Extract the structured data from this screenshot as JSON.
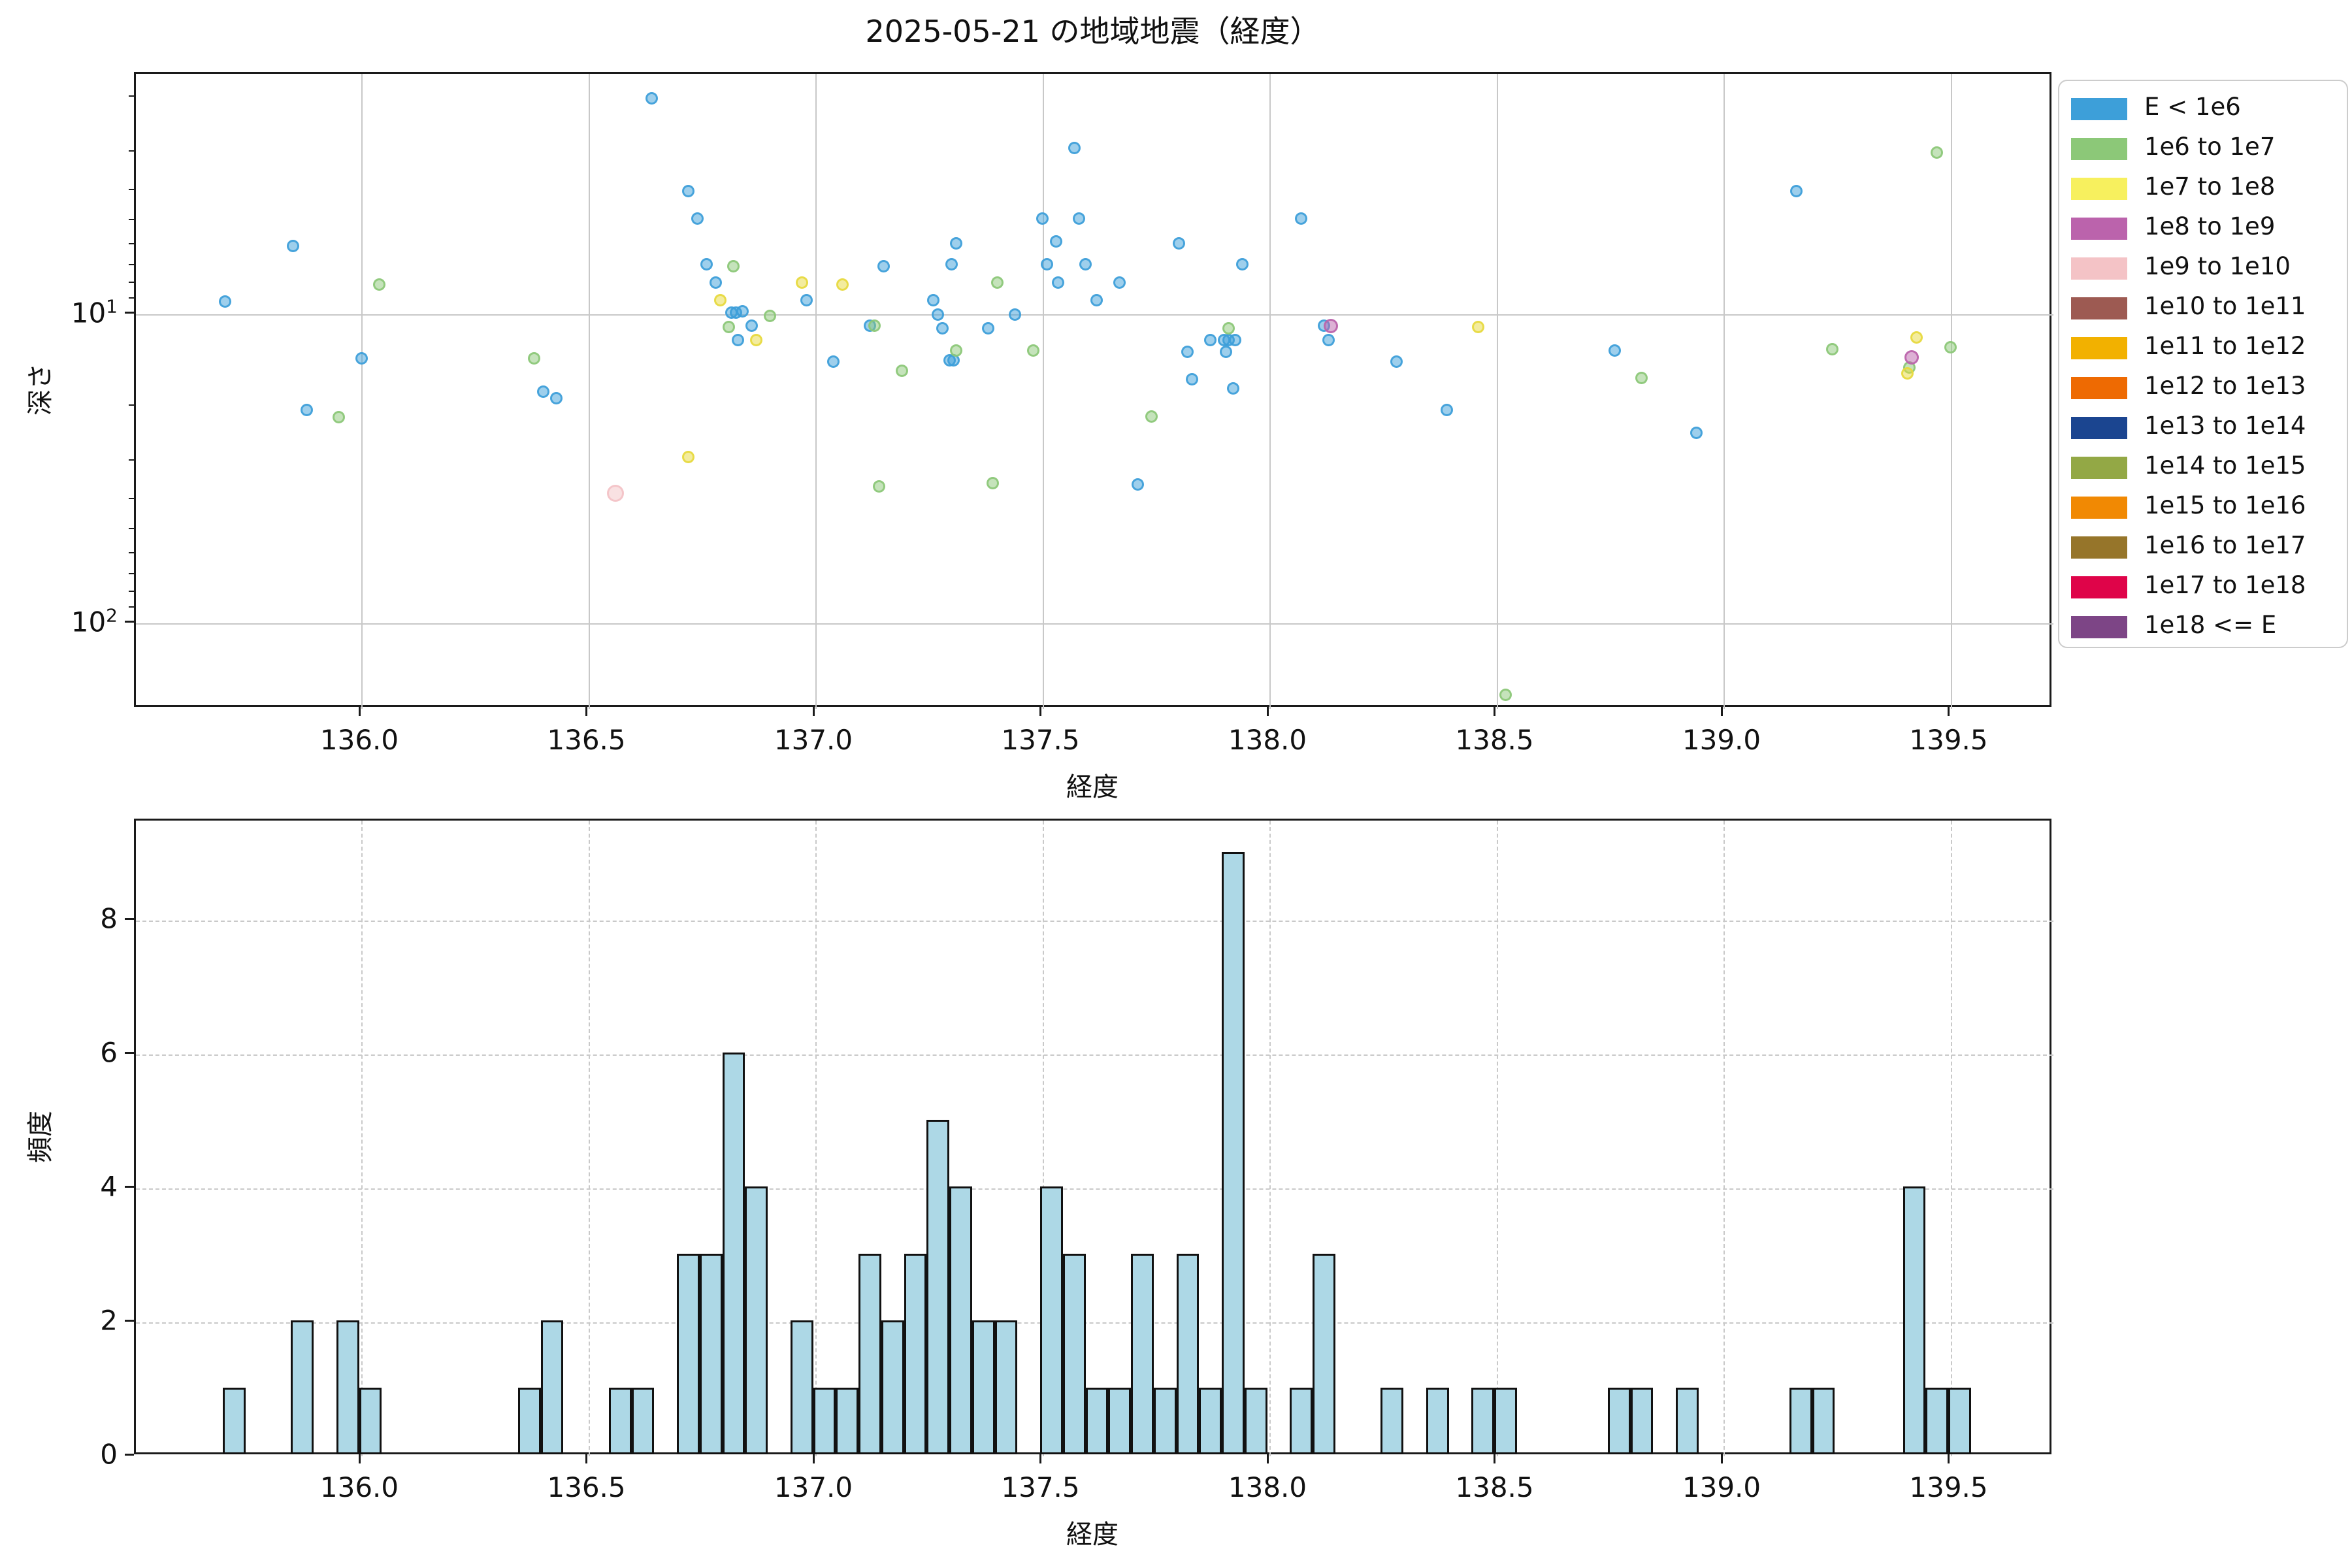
{
  "title": "2025-05-21 の地域地震（経度）",
  "legend": {
    "items": [
      {
        "label": "E < 1e6",
        "color": "#3d9fd9"
      },
      {
        "label": "1e6 to 1e7",
        "color": "#8cc878"
      },
      {
        "label": "1e7 to 1e8",
        "color": "#f7f05e"
      },
      {
        "label": "1e8 to 1e9",
        "color": "#bb63ac"
      },
      {
        "label": "1e9 to 1e10",
        "color": "#f4c3c6"
      },
      {
        "label": "1e10 to 1e11",
        "color": "#9d5a52"
      },
      {
        "label": "1e11 to 1e12",
        "color": "#f2b100"
      },
      {
        "label": "1e12 to 1e13",
        "color": "#ee6a02"
      },
      {
        "label": "1e13 to 1e14",
        "color": "#1b4590"
      },
      {
        "label": "1e14 to 1e15",
        "color": "#93a845"
      },
      {
        "label": "1e15 to 1e16",
        "color": "#f18903"
      },
      {
        "label": "1e16 to 1e17",
        "color": "#96752a"
      },
      {
        "label": "1e17 to 1e18",
        "color": "#df0449"
      },
      {
        "label": "1e18 <= E",
        "color": "#7d4586"
      }
    ]
  },
  "chart_data": [
    {
      "type": "scatter",
      "title": "2025-05-21 の地域地震（経度）",
      "xlabel": "経度",
      "ylabel": "深さ",
      "x_range": [
        135.5,
        139.73
      ],
      "y_scale": "log inverted (depth increases downward)",
      "y_range": [
        1.67,
        189
      ],
      "x_ticks": [
        {
          "v": 136.0,
          "label": "136.0"
        },
        {
          "v": 136.5,
          "label": "136.5"
        },
        {
          "v": 137.0,
          "label": "137.0"
        },
        {
          "v": 137.5,
          "label": "137.5"
        },
        {
          "v": 138.0,
          "label": "138.0"
        },
        {
          "v": 138.5,
          "label": "138.5"
        },
        {
          "v": 139.0,
          "label": "139.0"
        },
        {
          "v": 139.5,
          "label": "139.5"
        }
      ],
      "y_major_ticks": [
        {
          "v": 10,
          "base": "10",
          "exp": "1"
        },
        {
          "v": 100,
          "base": "10",
          "exp": "2"
        }
      ],
      "y_minor_ticks": [
        2,
        3,
        4,
        5,
        6,
        7,
        8,
        9,
        20,
        30,
        40,
        50,
        60,
        70,
        80,
        90
      ],
      "grid": "solid, major only",
      "legend_position": "outside upper right",
      "series": [
        {
          "name": "E < 1e6",
          "color": "#3d9fd9",
          "marker_r": 9.5,
          "points": [
            [
              135.7,
              9.1
            ],
            [
              135.85,
              6.0
            ],
            [
              135.88,
              20.4
            ],
            [
              136.0,
              13.9
            ],
            [
              136.4,
              17.8
            ],
            [
              136.43,
              18.7
            ],
            [
              136.64,
              2.0
            ],
            [
              136.72,
              4.0
            ],
            [
              136.74,
              4.9
            ],
            [
              136.76,
              6.9
            ],
            [
              136.78,
              7.9
            ],
            [
              136.815,
              9.9
            ],
            [
              136.825,
              9.9
            ],
            [
              136.84,
              9.8
            ],
            [
              136.83,
              12.1
            ],
            [
              136.86,
              10.9
            ],
            [
              136.98,
              9.0
            ],
            [
              137.04,
              14.2
            ],
            [
              137.12,
              10.9
            ],
            [
              137.15,
              7.0
            ],
            [
              137.26,
              9.0
            ],
            [
              137.27,
              10.0
            ],
            [
              137.28,
              11.1
            ],
            [
              137.295,
              14.1
            ],
            [
              137.305,
              14.1
            ],
            [
              137.31,
              5.9
            ],
            [
              137.3,
              6.9
            ],
            [
              137.38,
              11.1
            ],
            [
              137.44,
              10.0
            ],
            [
              137.5,
              4.9
            ],
            [
              137.51,
              6.9
            ],
            [
              137.53,
              5.8
            ],
            [
              137.535,
              7.9
            ],
            [
              137.57,
              2.9
            ],
            [
              137.58,
              4.9
            ],
            [
              137.595,
              6.9
            ],
            [
              137.62,
              9.0
            ],
            [
              137.67,
              7.9
            ],
            [
              137.71,
              35.6
            ],
            [
              137.8,
              5.9
            ],
            [
              137.82,
              13.2
            ],
            [
              137.83,
              16.2
            ],
            [
              137.87,
              12.1
            ],
            [
              137.9,
              12.1
            ],
            [
              137.91,
              12.1
            ],
            [
              137.925,
              12.1
            ],
            [
              137.905,
              13.2
            ],
            [
              137.92,
              17.4
            ],
            [
              137.94,
              6.9
            ],
            [
              138.07,
              4.9
            ],
            [
              138.12,
              10.9
            ],
            [
              138.13,
              12.1
            ],
            [
              138.28,
              14.2
            ],
            [
              138.39,
              20.4
            ],
            [
              138.76,
              13.1
            ],
            [
              138.94,
              24.2
            ],
            [
              139.16,
              4.0
            ]
          ]
        },
        {
          "name": "1e6 to 1e7",
          "color": "#8cc878",
          "marker_r": 9.5,
          "points": [
            [
              135.95,
              21.5
            ],
            [
              136.04,
              8.0
            ],
            [
              136.38,
              13.9
            ],
            [
              136.81,
              11.0
            ],
            [
              136.82,
              7.0
            ],
            [
              136.9,
              10.1
            ],
            [
              137.13,
              10.9
            ],
            [
              137.14,
              36.1
            ],
            [
              137.19,
              15.2
            ],
            [
              137.31,
              13.1
            ],
            [
              137.39,
              35.2
            ],
            [
              137.4,
              7.9
            ],
            [
              137.48,
              13.1
            ],
            [
              137.74,
              21.4
            ],
            [
              137.91,
              11.1
            ],
            [
              138.52,
              170.0
            ],
            [
              138.82,
              16.1
            ],
            [
              139.24,
              13.0
            ],
            [
              139.41,
              14.9
            ],
            [
              139.47,
              3.0
            ],
            [
              139.5,
              12.8
            ]
          ]
        },
        {
          "name": "1e7 to 1e8",
          "color": "#e8d93e",
          "marker_r": 9.5,
          "points": [
            [
              136.72,
              29.0
            ],
            [
              136.79,
              9.0
            ],
            [
              136.87,
              12.1
            ],
            [
              136.97,
              7.9
            ],
            [
              137.06,
              8.0
            ],
            [
              138.46,
              11.0
            ],
            [
              139.405,
              15.5
            ],
            [
              139.425,
              11.9
            ]
          ]
        },
        {
          "name": "1e8 to 1e9",
          "color": "#bb63ac",
          "marker_r": 11,
          "points": [
            [
              138.135,
              10.9
            ],
            [
              139.415,
              13.8
            ]
          ]
        },
        {
          "name": "1e9 to 1e10",
          "color": "#f4c3c6",
          "marker_r": 13,
          "points": [
            [
              136.56,
              38.0
            ]
          ]
        }
      ]
    },
    {
      "type": "bar",
      "xlabel": "経度",
      "ylabel": "頻度",
      "bar_color": "#ADD8E6",
      "edge_color": "#111111",
      "grid": "dashed, both axes",
      "bin_width": 0.05,
      "x_ticks": [
        {
          "v": 136.0,
          "label": "136.0"
        },
        {
          "v": 136.5,
          "label": "136.5"
        },
        {
          "v": 137.0,
          "label": "137.0"
        },
        {
          "v": 137.5,
          "label": "137.5"
        },
        {
          "v": 138.0,
          "label": "138.0"
        },
        {
          "v": 138.5,
          "label": "138.5"
        },
        {
          "v": 139.0,
          "label": "139.0"
        },
        {
          "v": 139.5,
          "label": "139.5"
        }
      ],
      "y_ticks": [
        0,
        2,
        4,
        6,
        8
      ],
      "ylim": [
        0,
        9.45
      ],
      "bars": [
        [
          135.72,
          1
        ],
        [
          135.87,
          2
        ],
        [
          135.97,
          2
        ],
        [
          136.02,
          1
        ],
        [
          136.37,
          1
        ],
        [
          136.42,
          2
        ],
        [
          136.57,
          1
        ],
        [
          136.62,
          1
        ],
        [
          136.72,
          3
        ],
        [
          136.77,
          3
        ],
        [
          136.82,
          6
        ],
        [
          136.87,
          4
        ],
        [
          136.97,
          2
        ],
        [
          137.02,
          1
        ],
        [
          137.07,
          1
        ],
        [
          137.12,
          3
        ],
        [
          137.17,
          2
        ],
        [
          137.22,
          3
        ],
        [
          137.27,
          5
        ],
        [
          137.32,
          4
        ],
        [
          137.37,
          2
        ],
        [
          137.42,
          2
        ],
        [
          137.52,
          4
        ],
        [
          137.57,
          3
        ],
        [
          137.62,
          1
        ],
        [
          137.67,
          1
        ],
        [
          137.72,
          3
        ],
        [
          137.77,
          1
        ],
        [
          137.82,
          3
        ],
        [
          137.87,
          1
        ],
        [
          137.92,
          9
        ],
        [
          137.97,
          1
        ],
        [
          138.07,
          1
        ],
        [
          138.12,
          3
        ],
        [
          138.27,
          1
        ],
        [
          138.37,
          1
        ],
        [
          138.47,
          1
        ],
        [
          138.52,
          1
        ],
        [
          138.77,
          1
        ],
        [
          138.82,
          1
        ],
        [
          138.92,
          1
        ],
        [
          139.17,
          1
        ],
        [
          139.22,
          1
        ],
        [
          139.42,
          4
        ],
        [
          139.47,
          1
        ],
        [
          139.52,
          1
        ]
      ]
    }
  ]
}
